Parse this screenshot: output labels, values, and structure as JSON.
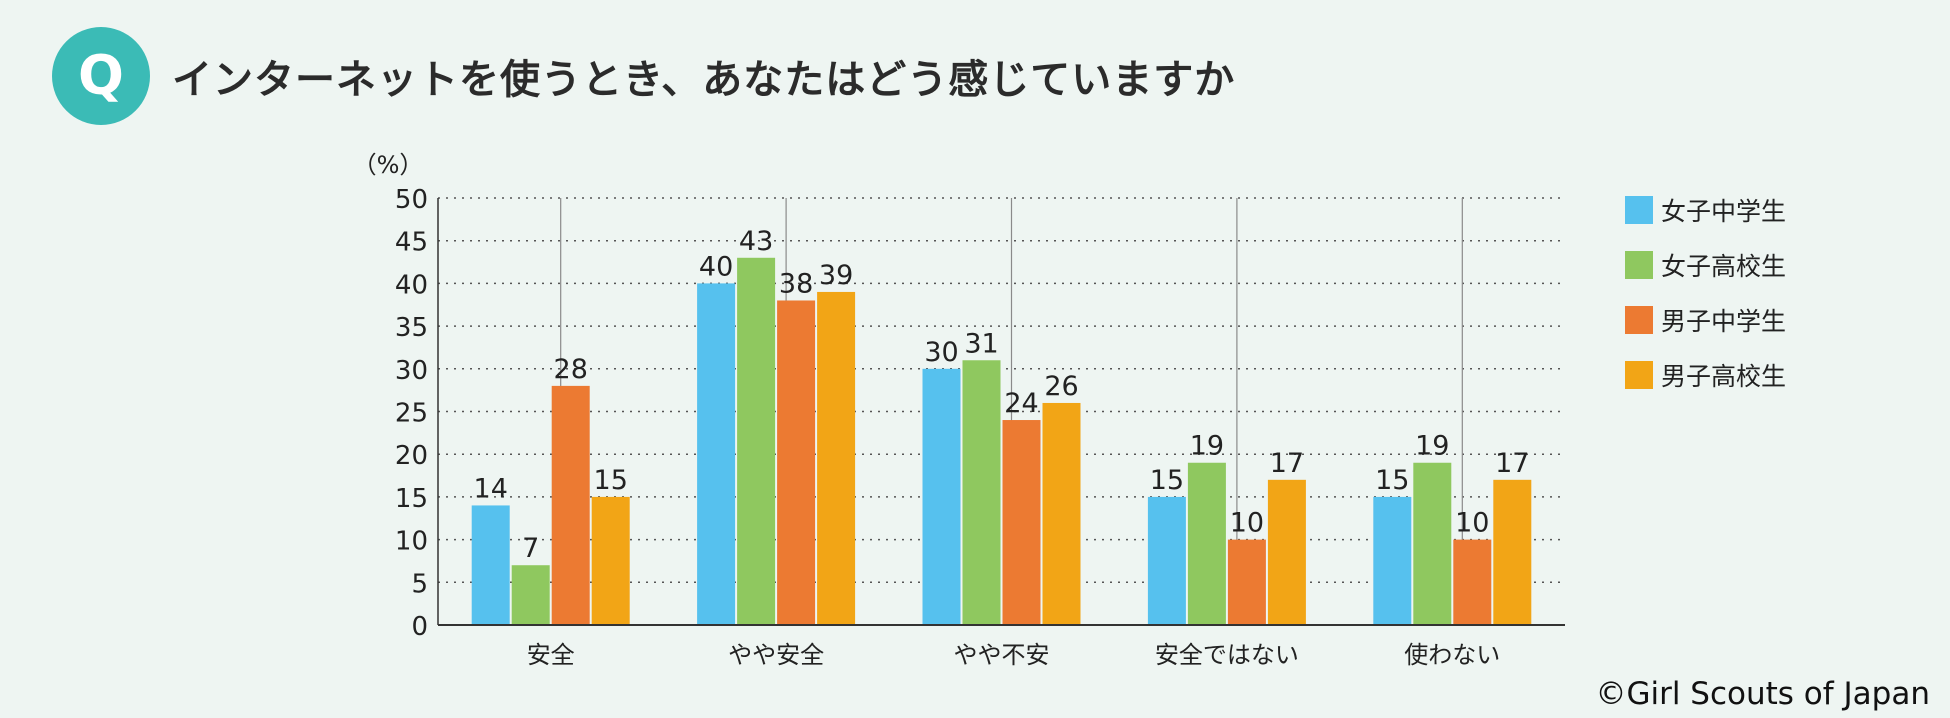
{
  "header": {
    "badge": "Q",
    "title": "インターネットを使うとき、あなたはどう感じていますか"
  },
  "copyright": "©Girl Scouts of Japan",
  "colors": {
    "background": "#eef5f2",
    "badge": "#3bbbb6",
    "series": [
      "#56c1ee",
      "#8fc85f",
      "#ec7a32",
      "#f2a516"
    ]
  },
  "chart_data": {
    "type": "bar",
    "title": "インターネットを使うとき、あなたはどう感じていますか",
    "ylabel": "（%）",
    "xlabel": "",
    "ylim": [
      0,
      50
    ],
    "yticks": [
      0,
      5,
      10,
      15,
      20,
      25,
      30,
      35,
      40,
      45,
      50
    ],
    "categories": [
      "安全",
      "やや安全",
      "やや不安",
      "安全ではない",
      "使わない"
    ],
    "series": [
      {
        "name": "女子中学生",
        "values": [
          14,
          40,
          30,
          15,
          15
        ]
      },
      {
        "name": "女子高校生",
        "values": [
          7,
          43,
          31,
          19,
          19
        ]
      },
      {
        "name": "男子中学生",
        "values": [
          28,
          38,
          24,
          10,
          10
        ]
      },
      {
        "name": "男子高校生",
        "values": [
          15,
          39,
          26,
          17,
          17
        ]
      }
    ],
    "legend_position": "right",
    "grid": true
  }
}
